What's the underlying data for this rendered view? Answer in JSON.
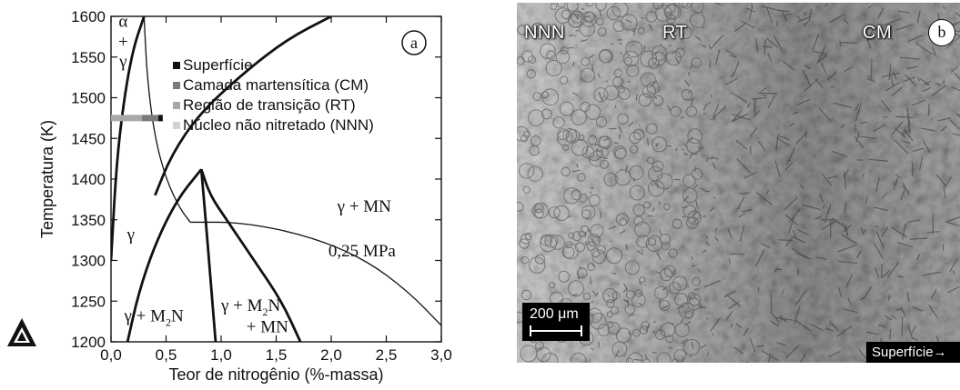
{
  "panel_a": {
    "label": "a",
    "chart_data": {
      "type": "line",
      "xlabel": "Teor de nitrogênio (%-massa)",
      "ylabel": "Temperatura (K)",
      "xlim": [
        0,
        3.0
      ],
      "ylim": [
        1200,
        1600
      ],
      "xticks": [
        "0,0",
        "0,5",
        "1,0",
        "1,5",
        "2,0",
        "2,5",
        "3,0"
      ],
      "yticks": [
        "1200",
        "1250",
        "1300",
        "1350",
        "1400",
        "1450",
        "1500",
        "1550",
        "1600"
      ],
      "legend": [
        {
          "label": "Superfície",
          "color": "#111111"
        },
        {
          "label": "Camada martensítica (CM)",
          "color": "#7a7a7a"
        },
        {
          "label": "Região de transição (RT)",
          "color": "#a8a8a8"
        },
        {
          "label": "Núcleo não nitretado (NNN)",
          "color": "#d2d2d2"
        }
      ],
      "region_labels": [
        {
          "text": "α",
          "x": 0.11,
          "y": 1587
        },
        {
          "text": "+",
          "x": 0.11,
          "y": 1562
        },
        {
          "text": "γ",
          "x": 0.11,
          "y": 1538
        },
        {
          "text": "γ",
          "x": 0.18,
          "y": 1325
        },
        {
          "text": "γ + MN",
          "x": 2.3,
          "y": 1360
        },
        {
          "text": "0,25 MPa",
          "x": 2.28,
          "y": 1305
        }
      ],
      "series": [
        {
          "id": "alpha-gamma-boundary",
          "points": [
            [
              0.0,
              1300
            ],
            [
              0.05,
              1420
            ],
            [
              0.12,
              1500
            ],
            [
              0.2,
              1560
            ],
            [
              0.3,
              1600
            ]
          ]
        },
        {
          "id": "gamma-solvus-thin",
          "points": [
            [
              0.3,
              1600
            ],
            [
              0.33,
              1520
            ],
            [
              0.4,
              1450
            ],
            [
              0.5,
              1400
            ],
            [
              0.62,
              1365
            ],
            [
              0.72,
              1347
            ]
          ]
        },
        {
          "id": "mn-solvus-upper",
          "points": [
            [
              0.4,
              1380
            ],
            [
              0.55,
              1430
            ],
            [
              0.8,
              1480
            ],
            [
              1.2,
              1530
            ],
            [
              1.6,
              1572
            ],
            [
              2.0,
              1600
            ]
          ]
        },
        {
          "id": "isobar-0.25MPa",
          "points": [
            [
              0.72,
              1347
            ],
            [
              1.2,
              1347
            ],
            [
              1.8,
              1330
            ],
            [
              2.3,
              1302
            ],
            [
              2.7,
              1262
            ],
            [
              3.0,
              1220
            ]
          ]
        },
        {
          "id": "gamma-m2n-left",
          "points": [
            [
              0.15,
              1200
            ],
            [
              0.25,
              1260
            ],
            [
              0.4,
              1320
            ],
            [
              0.6,
              1375
            ],
            [
              0.82,
              1412
            ]
          ]
        },
        {
          "id": "m2n-mn-right",
          "points": [
            [
              0.82,
              1412
            ],
            [
              0.9,
              1380
            ],
            [
              1.05,
              1350
            ],
            [
              1.3,
              1300
            ],
            [
              1.55,
              1250
            ],
            [
              1.72,
              1200
            ]
          ]
        },
        {
          "id": "m2n-inner",
          "points": [
            [
              0.82,
              1412
            ],
            [
              0.86,
              1350
            ],
            [
              0.89,
              1300
            ],
            [
              0.92,
              1250
            ],
            [
              0.95,
              1200
            ]
          ]
        }
      ],
      "bars": [
        {
          "from": 0.0,
          "to": 0.28,
          "y": 1475,
          "color": "#a8a8a8"
        },
        {
          "from": 0.28,
          "to": 0.43,
          "y": 1475,
          "color": "#7a7a7a"
        },
        {
          "from": 0.43,
          "to": 0.47,
          "y": 1475,
          "color": "#111111"
        }
      ]
    }
  },
  "panel_b": {
    "label": "b",
    "zones": [
      "NNN",
      "RT",
      "CM"
    ],
    "scale_bar": "200 μm",
    "direction_label": "Superfície→"
  }
}
